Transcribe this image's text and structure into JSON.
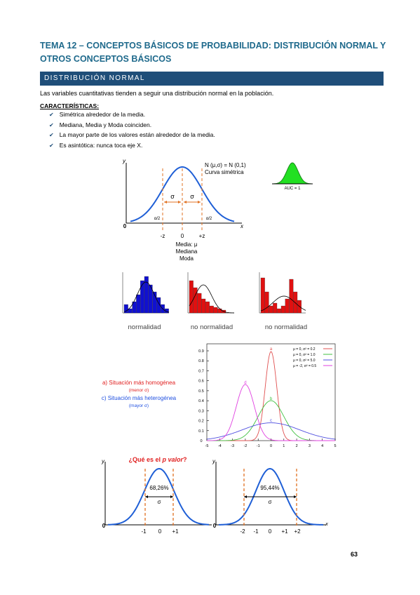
{
  "header": {
    "title": "TEMA 12 – CONCEPTOS BÁSICOS DE PROBABILIDAD: DISTRIBUCIÓN NORMAL Y OTROS CONCEPTOS BÁSICOS"
  },
  "section": {
    "title": "DISTRIBUCIÓN NORMAL"
  },
  "intro": "Las variables cuantitativas tienden a seguir una distribución normal en la población.",
  "characteristics": {
    "heading": "CARACTERÍSTICAS:",
    "items": [
      "Simétrica alrededor de la media.",
      "Mediana, Media y Moda coinciden.",
      "La mayor parte de los valores están alrededor de la media.",
      "Es asintótica: nunca toca eje X."
    ]
  },
  "figure1": {
    "y_label": "y",
    "x_label": "x",
    "origin": "0",
    "notation": "N (μ,σ) = N (0,1)",
    "subtitle": "Curva simétrica",
    "sigma": [
      "σ",
      "σ"
    ],
    "alpha": [
      "α/2",
      "α/2"
    ],
    "ticks": [
      "-z",
      "0",
      "+z"
    ],
    "center_labels": [
      "Media: μ",
      "Mediana",
      "Moda"
    ],
    "auc": "AUC = 1"
  },
  "histograms": {
    "labels": [
      "normalidad",
      "no normalidad",
      "no normalidad"
    ]
  },
  "figure2": {
    "notes": [
      "a) Situación más homogénea",
      "(menor σ)",
      "c) Situación más heterogénea",
      "(mayor σ)"
    ],
    "curve_labels": [
      "a",
      "b",
      "c",
      "d"
    ],
    "legend": [
      "μ = 0, σ² = 0.2",
      "μ = 0, σ² = 1.0",
      "μ = 0, σ² = 5.0",
      "μ = -2, σ² = 0.5"
    ],
    "xticks": [
      -5,
      -4,
      -3,
      -2,
      -1,
      0,
      1,
      2,
      3,
      4,
      5
    ],
    "yticks": [
      0,
      0.1,
      0.2,
      0.3,
      0.4,
      0.5,
      0.6,
      0.7,
      0.8,
      0.9
    ]
  },
  "figure3": {
    "title": [
      "¿Qué es el ",
      "p valor",
      "?"
    ],
    "y_label": "y",
    "x_label": "x",
    "origin": "0",
    "left": {
      "percent": "68,26%",
      "sigma": "σ",
      "ticks": [
        "-1",
        "0",
        "+1"
      ]
    },
    "right": {
      "percent": "95,44%",
      "sigma": "σ",
      "ticks": [
        "-2",
        "-1",
        "0",
        "+1",
        "+2"
      ]
    }
  },
  "page_number": "63"
}
